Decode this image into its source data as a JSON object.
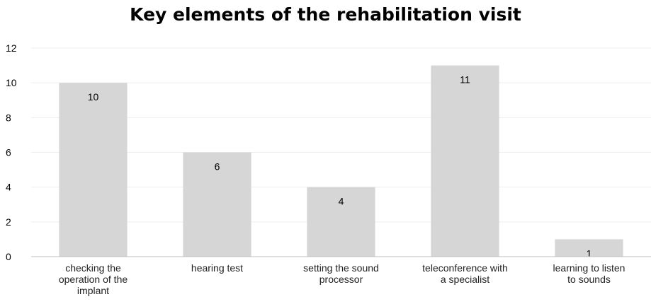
{
  "chart_data": {
    "type": "bar",
    "title": "Key elements of the rehabilitation visit",
    "xlabel": "",
    "ylabel": "",
    "categories": [
      [
        "checking the",
        "operation of the",
        "implant"
      ],
      [
        "hearing test"
      ],
      [
        "setting the sound",
        "processor"
      ],
      [
        "teleconference with",
        "a specialist"
      ],
      [
        "learning to listen",
        "to sounds"
      ]
    ],
    "values": [
      10,
      6,
      4,
      11,
      1
    ],
    "ylim": [
      0,
      12
    ],
    "yticks": [
      0,
      2,
      4,
      6,
      8,
      10,
      12
    ],
    "grid": true,
    "legend": "none",
    "data_labels": true,
    "colors": {
      "bar": "#d6d6d6",
      "grid": "#eeeeee",
      "axis": "#bfbfbf",
      "text": "#000000"
    }
  }
}
